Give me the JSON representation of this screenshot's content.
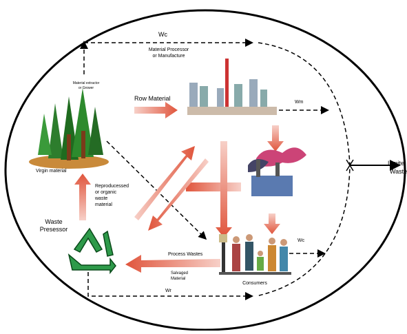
{
  "labels": {
    "wc_top": "Wc",
    "processor": [
      "Material Processor",
      "or Manufacture"
    ],
    "extractor": [
      "Material extractor",
      "or Grower"
    ],
    "row_material": "Row Material",
    "wm": "Wm",
    "virgin": "Virgin material",
    "limited": [
      "Limite",
      "Waste"
    ],
    "reproduced": [
      "Reproducessed",
      "or organic",
      "waste",
      "material"
    ],
    "presessor": [
      "Waste",
      "Presessor"
    ],
    "process_wastes": "Process Wastes",
    "salvaged": [
      "Salvaged",
      "Material"
    ],
    "wc_right": "Wc",
    "consumers": "Consumers",
    "wr": "Wr"
  }
}
